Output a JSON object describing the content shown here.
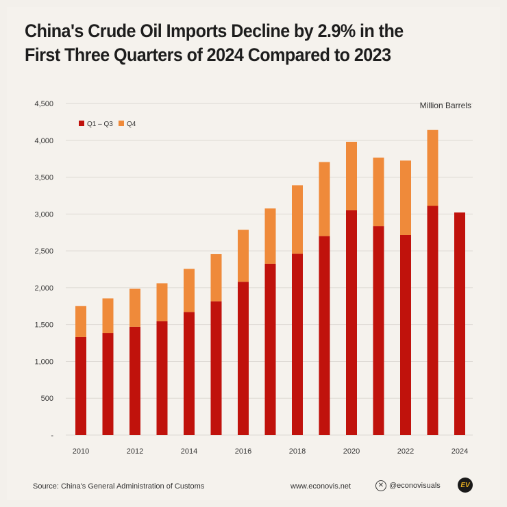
{
  "title_line1": "China's Crude Oil Imports Decline by 2.9% in the",
  "title_line2": "First Three Quarters of 2024 Compared to 2023",
  "chart_data": {
    "type": "bar",
    "stacked": true,
    "unit_label": "Million Barrels",
    "categories": [
      "2010",
      "2011",
      "2012",
      "2013",
      "2014",
      "2015",
      "2016",
      "2017",
      "2018",
      "2019",
      "2020",
      "2021",
      "2022",
      "2023",
      "2024"
    ],
    "x_tick_labels": [
      "2010",
      "2012",
      "2014",
      "2016",
      "2018",
      "2020",
      "2022",
      "2024"
    ],
    "series": [
      {
        "name": "Q1 – Q3",
        "color": "#c0120c",
        "values": [
          1330,
          1385,
          1470,
          1545,
          1670,
          1815,
          2080,
          2325,
          2460,
          2700,
          3050,
          2835,
          2715,
          3110,
          3020
        ]
      },
      {
        "name": "Q4",
        "color": "#ef8a3a",
        "values": [
          420,
          470,
          515,
          515,
          585,
          640,
          705,
          750,
          930,
          1005,
          930,
          930,
          1010,
          1030,
          0
        ]
      }
    ],
    "ylim": [
      0,
      4500
    ],
    "y_ticks": [
      0,
      500,
      1000,
      1500,
      2000,
      2500,
      3000,
      3500,
      4000,
      4500
    ],
    "y_tick_labels": [
      "-",
      "500",
      "1,000",
      "1,500",
      "2,000",
      "2,500",
      "3,000",
      "3,500",
      "4,000",
      "4,500"
    ],
    "grid": true,
    "legend": "top-left"
  },
  "footer": {
    "source": "Source: China's General Administration of Customs",
    "website": "www.econovis.net",
    "social_handle": "@econovisuals",
    "social_icon": "x-icon",
    "logo_text": "EV"
  }
}
